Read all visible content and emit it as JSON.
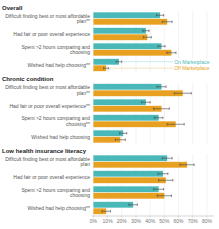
{
  "chart_data": [
    {
      "type": "bar",
      "orientation": "horizontal",
      "title": "Overall",
      "categories": [
        "Difficult finding best or most affordable plan**",
        "Had fair or poor overall experience",
        "Spent >2 hours comparing and choosing",
        "Wished had help choosing**"
      ],
      "series": [
        {
          "name": "On Marketplace",
          "color": "#4ab8b8",
          "values": [
            47,
            37,
            48,
            18
          ],
          "errors": [
            2.5,
            2.2,
            2.5,
            2.0
          ]
        },
        {
          "name": "Off Marketplace",
          "color": "#e8a020",
          "values": [
            52,
            38,
            55,
            9
          ],
          "errors": [
            3.5,
            2.8,
            3.2,
            1.8
          ]
        }
      ],
      "xlim": [
        -1,
        85
      ],
      "xticks": [
        {
          "value": 0,
          "label": "0%"
        },
        {
          "value": 10,
          "label": "10%"
        },
        {
          "value": 20,
          "label": "20%"
        },
        {
          "value": 30,
          "label": "30%"
        },
        {
          "value": 40,
          "label": "40%"
        },
        {
          "value": 50,
          "label": "50%"
        },
        {
          "value": 60,
          "label": "60%"
        },
        {
          "value": 70,
          "label": "70%"
        },
        {
          "value": 80,
          "label": "80%"
        }
      ],
      "grid": true,
      "tick_labels": false
    },
    {
      "type": "bar",
      "orientation": "horizontal",
      "title": "Chronic condition",
      "categories": [
        "Difficult finding best or most affordable plan**",
        "Had fair or poor overall experience**",
        "Spent >2 hours comparing and choosing**",
        "Wished had help choosing"
      ],
      "series": [
        {
          "color": "#4ab8b8",
          "values": [
            48,
            37,
            46,
            21
          ],
          "errors": [
            3.2,
            3.0,
            3.0,
            2.5
          ]
        },
        {
          "color": "#e8a020",
          "values": [
            63,
            48,
            58,
            19
          ],
          "errors": [
            6.0,
            5.5,
            6.0,
            3.5
          ]
        }
      ],
      "xlim": [
        -1,
        85
      ],
      "xticks": [
        {
          "value": 0,
          "label": "0%"
        },
        {
          "value": 10,
          "label": "10%"
        },
        {
          "value": 20,
          "label": "20%"
        },
        {
          "value": 30,
          "label": "30%"
        },
        {
          "value": 40,
          "label": "40%"
        },
        {
          "value": 50,
          "label": "50%"
        },
        {
          "value": 60,
          "label": "60%"
        },
        {
          "value": 70,
          "label": "70%"
        },
        {
          "value": 80,
          "label": "80%"
        }
      ],
      "grid": true,
      "tick_labels": false
    },
    {
      "type": "bar",
      "orientation": "horizontal",
      "title": "Low health insurance literacy",
      "categories": [
        "Difficult finding best or most affordable plan",
        "Had fair or poor overall experience",
        "Spent >2 hours comparing and choosing",
        "Wished had help choosing**"
      ],
      "series": [
        {
          "color": "#4ab8b8",
          "values": [
            52,
            49,
            46,
            28
          ],
          "errors": [
            3.5,
            3.5,
            3.5,
            3.0
          ]
        },
        {
          "color": "#e8a020",
          "values": [
            66,
            51,
            50,
            9
          ],
          "errors": [
            5.0,
            5.0,
            5.0,
            3.0
          ]
        }
      ],
      "xlim": [
        -1,
        85
      ],
      "xticks": [
        {
          "value": 0,
          "label": "0%"
        },
        {
          "value": 10,
          "label": "10%"
        },
        {
          "value": 20,
          "label": "20%"
        },
        {
          "value": 30,
          "label": "30%"
        },
        {
          "value": 40,
          "label": "40%"
        },
        {
          "value": 50,
          "label": "50%"
        },
        {
          "value": 60,
          "label": "60%"
        },
        {
          "value": 70,
          "label": "70%"
        },
        {
          "value": 80,
          "label": "80%"
        }
      ],
      "grid": true,
      "tick_labels": "x"
    }
  ]
}
